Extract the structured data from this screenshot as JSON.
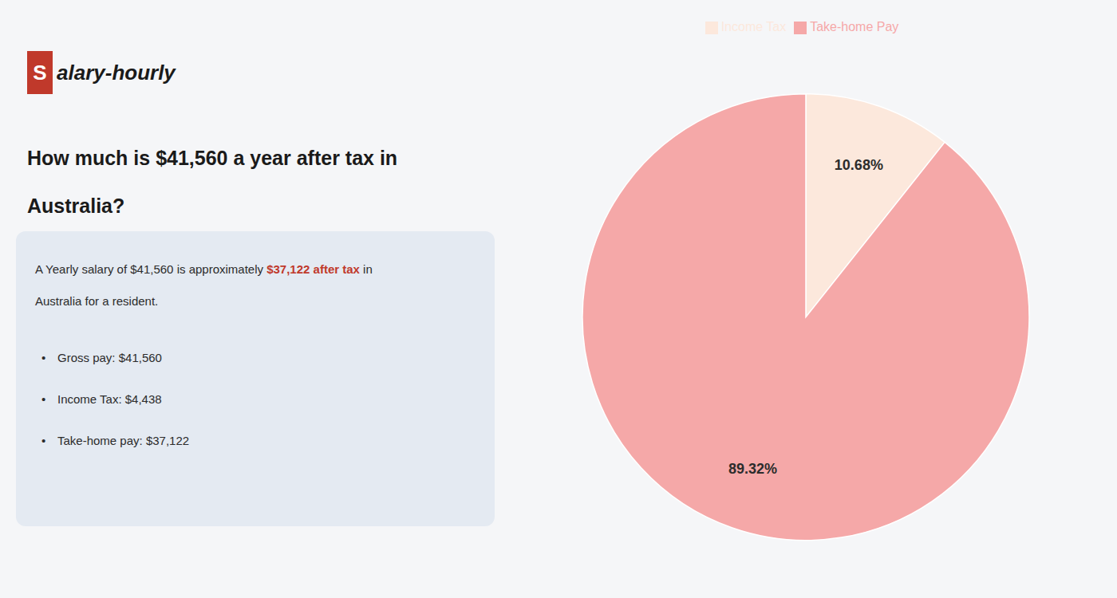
{
  "chart_data": {
    "type": "pie",
    "title": "How much is $41,560 a year after tax in",
    "subtitle": "Australia?",
    "categories": [
      "Income Tax",
      "Take-home Pay"
    ],
    "values": [
      10.68,
      89.32
    ],
    "value_labels": [
      "10.68%",
      "89.32%"
    ],
    "colors": [
      "#fce8dc",
      "#f5a8a8"
    ],
    "data_labels": true,
    "legend": "top",
    "annotations": [
      {
        "text": "S",
        "color": "#c0392b"
      },
      {
        "text": "alary-hourly"
      },
      {
        "text": "A Yearly salary of $41,560 is approximately "
      },
      {
        "text": "$37,122 after tax",
        "color": "#c0392b"
      },
      {
        "text": " in"
      },
      {
        "text": "Australia for a resident."
      },
      {
        "text": "•"
      },
      {
        "text": "Gross pay: $41,560"
      },
      {
        "text": "Income Tax: $4,438"
      },
      {
        "text": "Take-home pay: $37,122"
      }
    ]
  }
}
